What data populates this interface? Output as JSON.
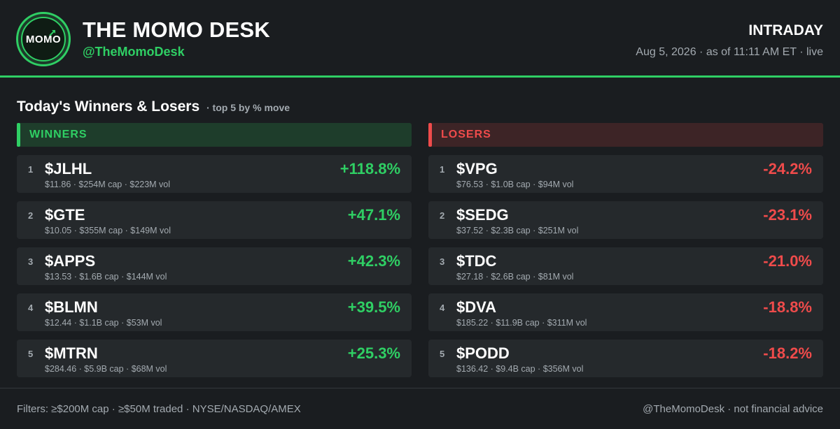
{
  "brand": {
    "logo_text": "MOMO",
    "title": "THE MOMO DESK",
    "handle": "@TheMomoDesk"
  },
  "header": {
    "mode": "INTRADAY",
    "as_of": "Aug 5, 2026 · as of 11:11 AM ET · live"
  },
  "section": {
    "title": "Today's Winners & Losers",
    "subtitle": "· top 5 by % move"
  },
  "winners": {
    "label": "WINNERS",
    "rows": [
      {
        "rank": "1",
        "ticker": "$JLHL",
        "meta": "$11.86 · $254M cap · $223M vol",
        "pct": "+118.8%"
      },
      {
        "rank": "2",
        "ticker": "$GTE",
        "meta": "$10.05 · $355M cap · $149M vol",
        "pct": "+47.1%"
      },
      {
        "rank": "3",
        "ticker": "$APPS",
        "meta": "$13.53 · $1.6B cap · $144M vol",
        "pct": "+42.3%"
      },
      {
        "rank": "4",
        "ticker": "$BLMN",
        "meta": "$12.44 · $1.1B cap · $53M vol",
        "pct": "+39.5%"
      },
      {
        "rank": "5",
        "ticker": "$MTRN",
        "meta": "$284.46 · $5.9B cap · $68M vol",
        "pct": "+25.3%"
      }
    ]
  },
  "losers": {
    "label": "LOSERS",
    "rows": [
      {
        "rank": "1",
        "ticker": "$VPG",
        "meta": "$76.53 · $1.0B cap · $94M vol",
        "pct": "-24.2%"
      },
      {
        "rank": "2",
        "ticker": "$SEDG",
        "meta": "$37.52 · $2.3B cap · $251M vol",
        "pct": "-23.1%"
      },
      {
        "rank": "3",
        "ticker": "$TDC",
        "meta": "$27.18 · $2.6B cap · $81M vol",
        "pct": "-21.0%"
      },
      {
        "rank": "4",
        "ticker": "$DVA",
        "meta": "$185.22 · $11.9B cap · $311M vol",
        "pct": "-18.8%"
      },
      {
        "rank": "5",
        "ticker": "$PODD",
        "meta": "$136.42 · $9.4B cap · $356M vol",
        "pct": "-18.2%"
      }
    ]
  },
  "footer": {
    "filters": "Filters: ≥$200M cap · ≥$50M traded · NYSE/NASDAQ/AMEX",
    "credit": "@TheMomoDesk · not financial advice"
  },
  "colors": {
    "background": "#1a1d20",
    "accent_green": "#2fcf64",
    "accent_red": "#ef4b4b",
    "row_bg": "#25292c",
    "muted_text": "#a3aab0"
  },
  "icons": {
    "logo_arrow": "trend-up-arrow-icon"
  }
}
